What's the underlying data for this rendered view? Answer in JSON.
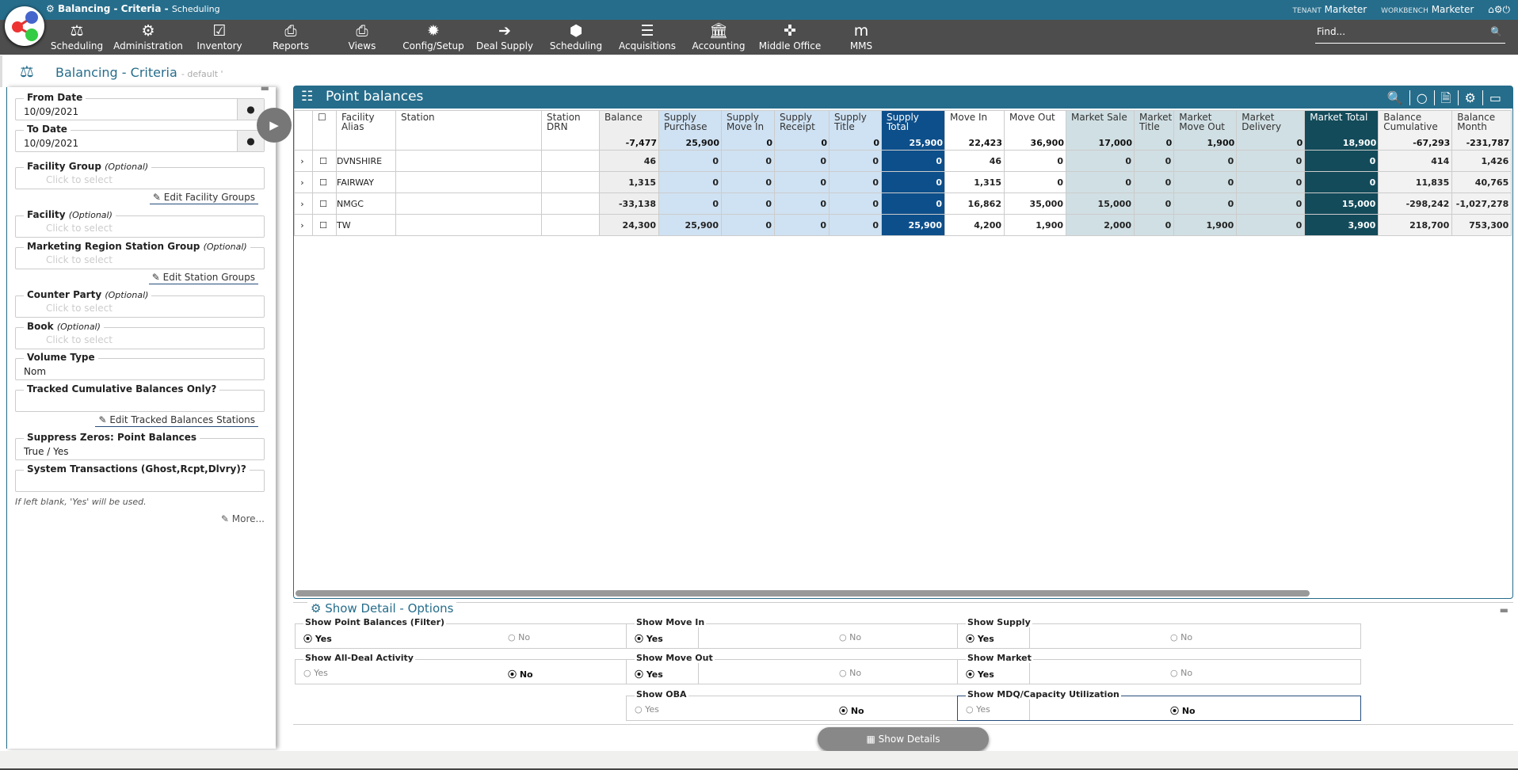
{
  "app": {
    "title": "Balancing - Criteria",
    "subtitle": "Scheduling",
    "tenant_label": "TENANT",
    "tenant": "Marketer",
    "workbench_label": "WORKBENCH",
    "workbench": "Marketer"
  },
  "nav": [
    {
      "label": "Scheduling",
      "icon": "⚖"
    },
    {
      "label": "Administration",
      "icon": "⚙"
    },
    {
      "label": "Inventory",
      "icon": "☑"
    },
    {
      "label": "Reports",
      "icon": "⎙"
    },
    {
      "label": "Views",
      "icon": "⎙"
    },
    {
      "label": "Config/Setup",
      "icon": "✹"
    },
    {
      "label": "Deal Supply",
      "icon": "➔"
    },
    {
      "label": "Scheduling",
      "icon": "⬢"
    },
    {
      "label": "Acquisitions",
      "icon": "☰"
    },
    {
      "label": "Accounting",
      "icon": "🏛"
    },
    {
      "label": "Middle Office",
      "icon": "✜"
    },
    {
      "label": "MMS",
      "icon": "m"
    }
  ],
  "search": {
    "placeholder": "Find..."
  },
  "page": {
    "title": "Balancing - Criteria",
    "view": "- default '"
  },
  "criteria": {
    "from_date": {
      "label": "From Date",
      "value": "10/09/2021"
    },
    "to_date": {
      "label": "To Date",
      "value": "10/09/2021"
    },
    "optional": "(Optional)",
    "placeholder": "Click to select",
    "facility_group": "Facility Group",
    "edit_facility_groups": "Edit Facility Groups",
    "facility": "Facility",
    "station_group": "Marketing Region Station Group",
    "edit_station_groups": "Edit Station Groups",
    "counter_party": "Counter Party",
    "book": "Book",
    "volume_type": {
      "label": "Volume Type",
      "value": "Nom"
    },
    "tracked": {
      "label": "Tracked Cumulative Balances Only?",
      "value": ""
    },
    "edit_tracked": "Edit Tracked Balances Stations",
    "suppress": {
      "label": "Suppress Zeros: Point Balances",
      "value": "True / Yes"
    },
    "system": {
      "label": "System Transactions (Ghost,Rcpt,Dlvry)?",
      "value": ""
    },
    "hint": "If left blank, 'Yes' will be used.",
    "more": "More..."
  },
  "grid": {
    "title": "Point balances",
    "columns": [
      {
        "label": "Facility Alias",
        "total": "",
        "cls": ""
      },
      {
        "label": "Station",
        "total": "",
        "cls": ""
      },
      {
        "label": "Station DRN",
        "total": "",
        "cls": ""
      },
      {
        "label": "Balance",
        "total": "-7,477",
        "cls": "c-bal"
      },
      {
        "label": "Supply Purchase",
        "total": "25,900",
        "cls": "c-sup"
      },
      {
        "label": "Supply Move In",
        "total": "0",
        "cls": "c-sup"
      },
      {
        "label": "Supply Receipt",
        "total": "0",
        "cls": "c-sup"
      },
      {
        "label": "Supply Title",
        "total": "0",
        "cls": "c-sup"
      },
      {
        "label": "Supply Total",
        "total": "25,900",
        "cls": "c-st"
      },
      {
        "label": "Move In",
        "total": "22,423",
        "cls": ""
      },
      {
        "label": "Move Out",
        "total": "36,900",
        "cls": ""
      },
      {
        "label": "Market Sale",
        "total": "17,000",
        "cls": "c-mk"
      },
      {
        "label": "Market Title",
        "total": "0",
        "cls": "c-mk"
      },
      {
        "label": "Market Move Out",
        "total": "1,900",
        "cls": "c-mk"
      },
      {
        "label": "Market Delivery",
        "total": "0",
        "cls": "c-mk"
      },
      {
        "label": "Market Total",
        "total": "18,900",
        "cls": "c-mt"
      },
      {
        "label": "Balance Cumulative",
        "total": "-67,293",
        "cls": "c-cum"
      },
      {
        "label": "Balance Month",
        "total": "-231,787",
        "cls": "c-cum"
      }
    ],
    "rows": [
      [
        "DVNSHIRE",
        "",
        "",
        "46",
        "0",
        "0",
        "0",
        "0",
        "0",
        "46",
        "0",
        "0",
        "0",
        "0",
        "0",
        "0",
        "414",
        "1,426"
      ],
      [
        "FAIRWAY",
        "",
        "",
        "1,315",
        "0",
        "0",
        "0",
        "0",
        "0",
        "1,315",
        "0",
        "0",
        "0",
        "0",
        "0",
        "0",
        "11,835",
        "40,765"
      ],
      [
        "NMGC",
        "",
        "",
        "-33,138",
        "0",
        "0",
        "0",
        "0",
        "0",
        "16,862",
        "35,000",
        "15,000",
        "0",
        "0",
        "0",
        "15,000",
        "-298,242",
        "-1,027,278"
      ],
      [
        "TW",
        "",
        "",
        "24,300",
        "25,900",
        "0",
        "0",
        "0",
        "25,900",
        "4,200",
        "1,900",
        "2,000",
        "0",
        "1,900",
        "0",
        "3,900",
        "218,700",
        "753,300"
      ]
    ]
  },
  "options": {
    "title": "Show Detail - Options",
    "yes": "Yes",
    "no": "No",
    "groups": [
      {
        "label": "Show Point Balances (Filter)",
        "value": "Yes"
      },
      {
        "label": "Show Move In",
        "value": "Yes"
      },
      {
        "label": "Show Supply",
        "value": "Yes"
      },
      {
        "label": "Show All-Deal Activity",
        "value": "No"
      },
      {
        "label": "Show Move Out",
        "value": "Yes"
      },
      {
        "label": "Show Market",
        "value": "Yes"
      },
      {
        "label": "Show OBA",
        "value": "No"
      },
      {
        "label": "Show MDQ/Capacity Utilization",
        "value": "No"
      }
    ],
    "show_details": "Show Details"
  }
}
